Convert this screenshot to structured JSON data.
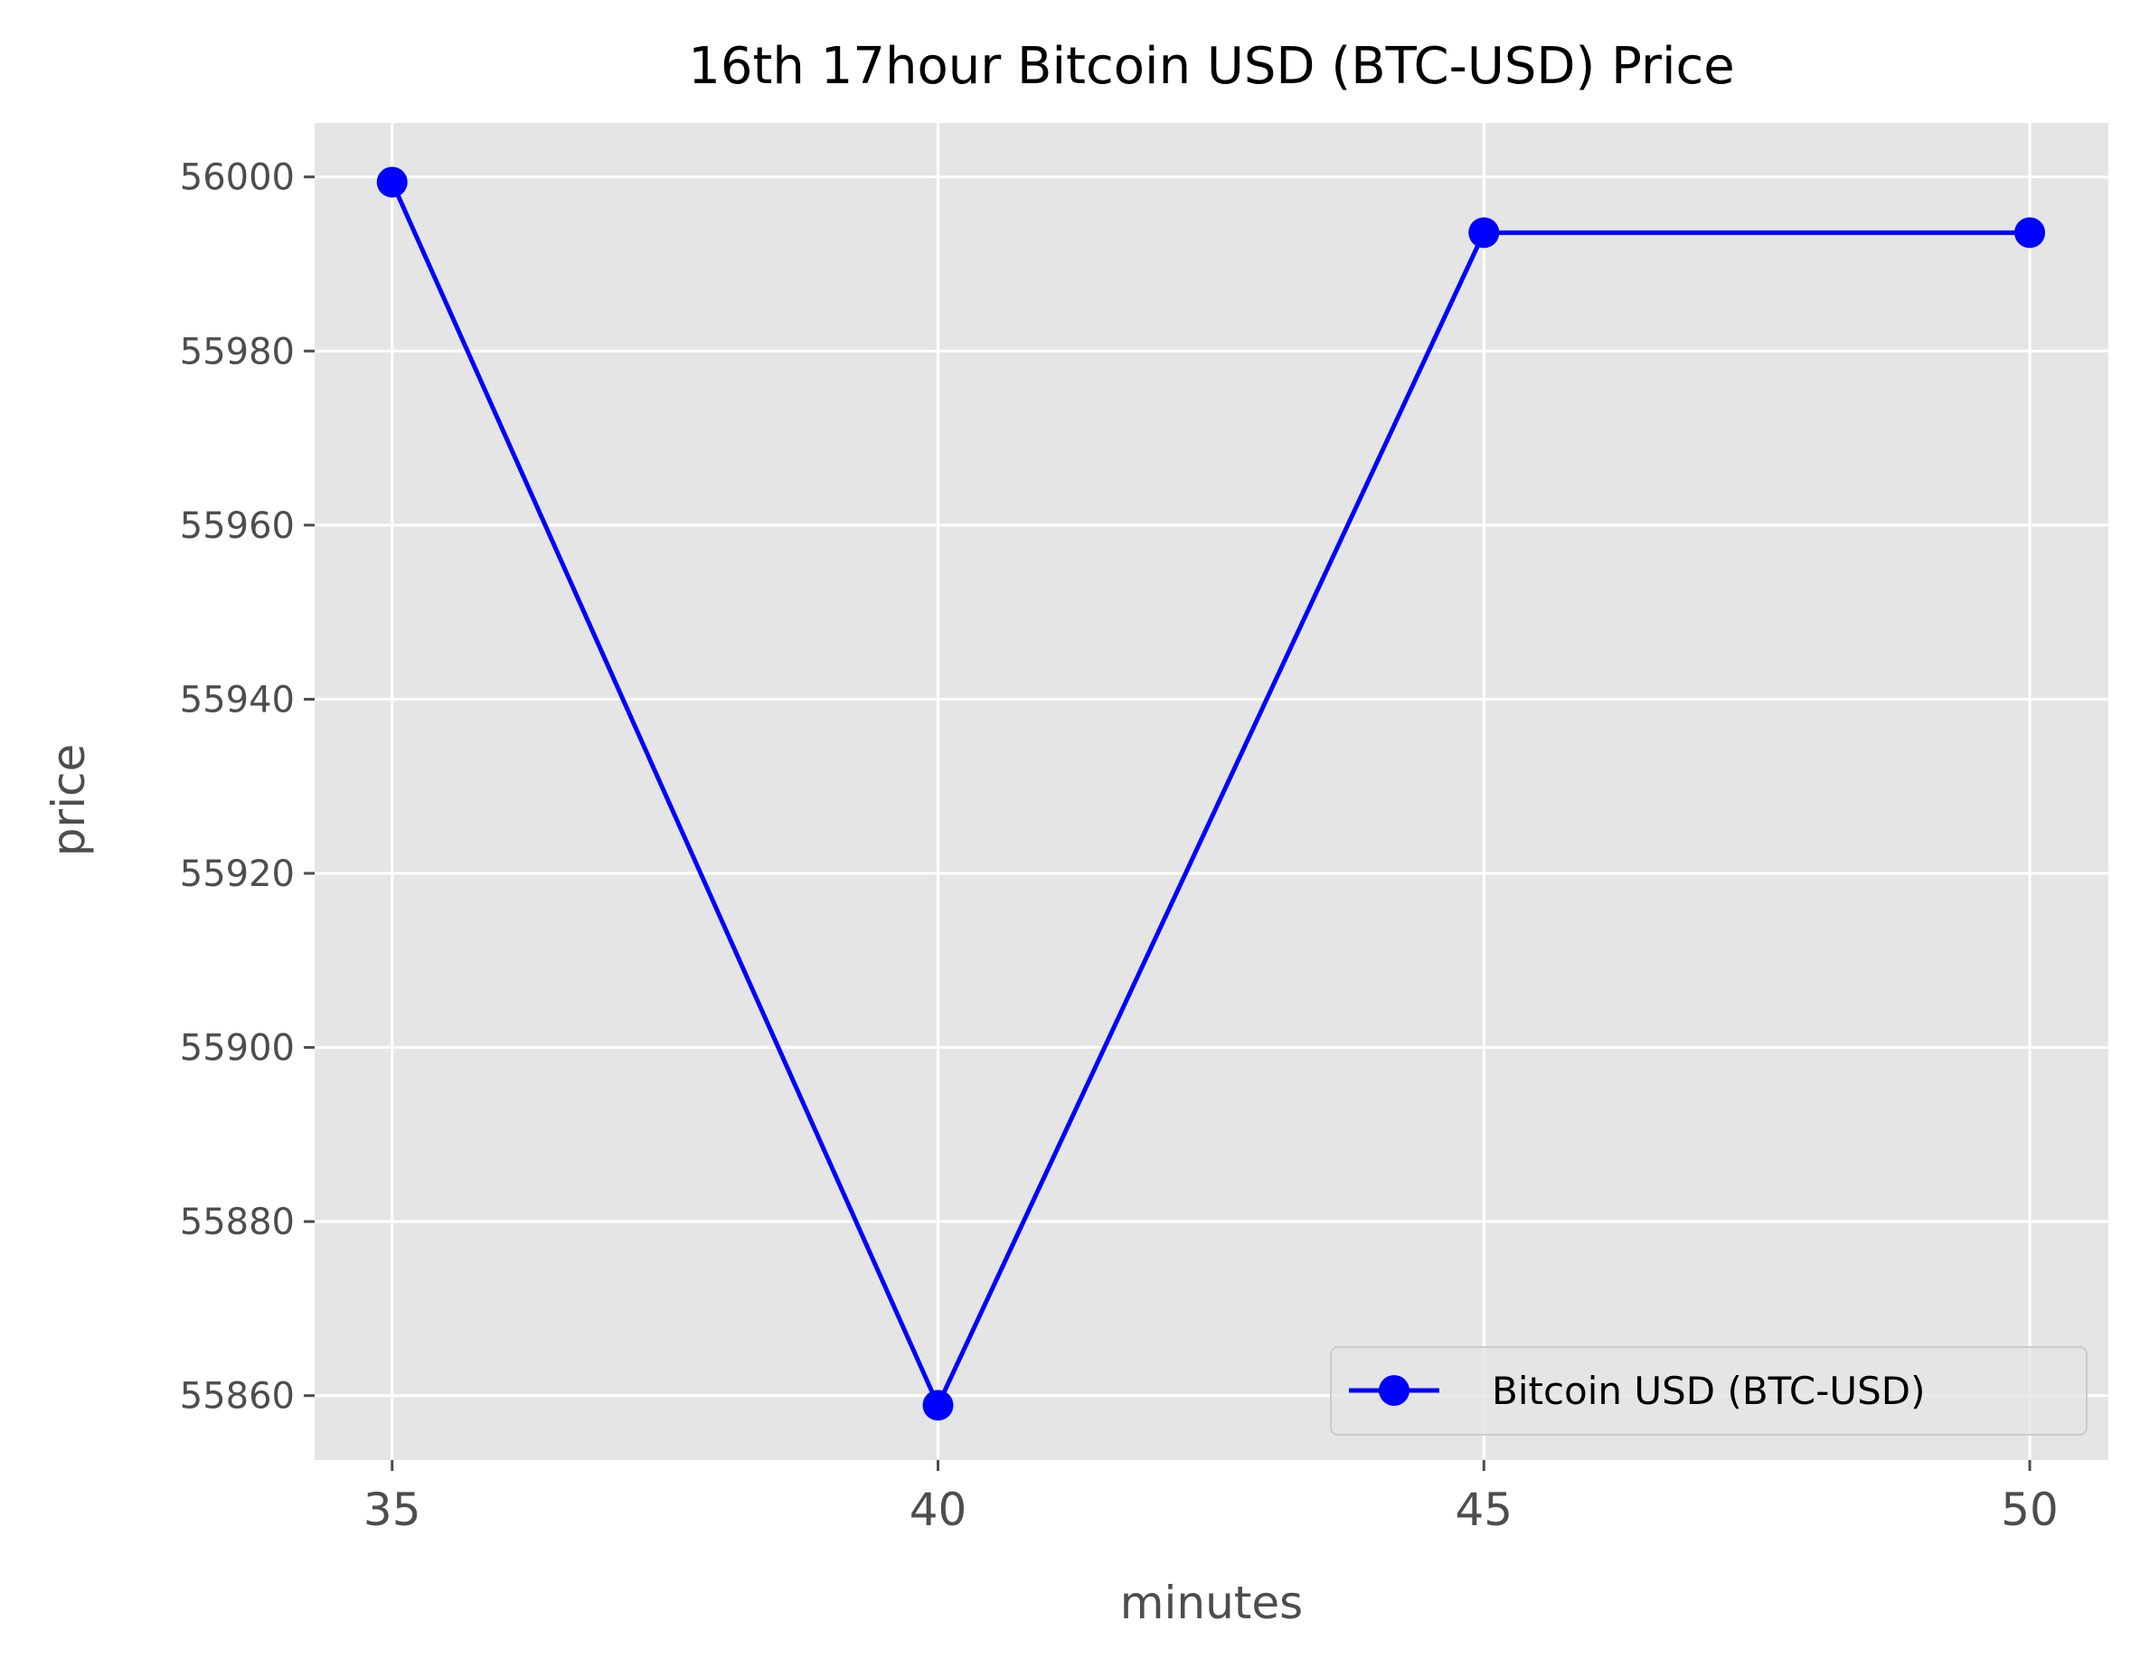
{
  "chart_data": {
    "type": "line",
    "title": "16th 17hour Bitcoin USD (BTC-USD) Price",
    "xlabel": "minutes",
    "ylabel": "price",
    "x": [
      35,
      40,
      45,
      50
    ],
    "x_ticks": [
      35,
      40,
      45,
      50
    ],
    "y_ticks": [
      55860,
      55880,
      55900,
      55920,
      55940,
      55960,
      55980,
      56000
    ],
    "xlim": [
      34.29,
      50.72
    ],
    "ylim": [
      55852.6,
      56006.2
    ],
    "grid": true,
    "legend": "bottom-right",
    "series": [
      {
        "name": "Bitcoin USD (BTC-USD)",
        "values": [
          55999.4,
          55858.9,
          55993.6,
          55993.6
        ],
        "color": "#0000ff",
        "marker": "circle"
      }
    ],
    "style": {
      "plot_background": "#e5e5e5",
      "grid_color": "#ffffff",
      "tick_color": "#4d4d4d"
    }
  }
}
